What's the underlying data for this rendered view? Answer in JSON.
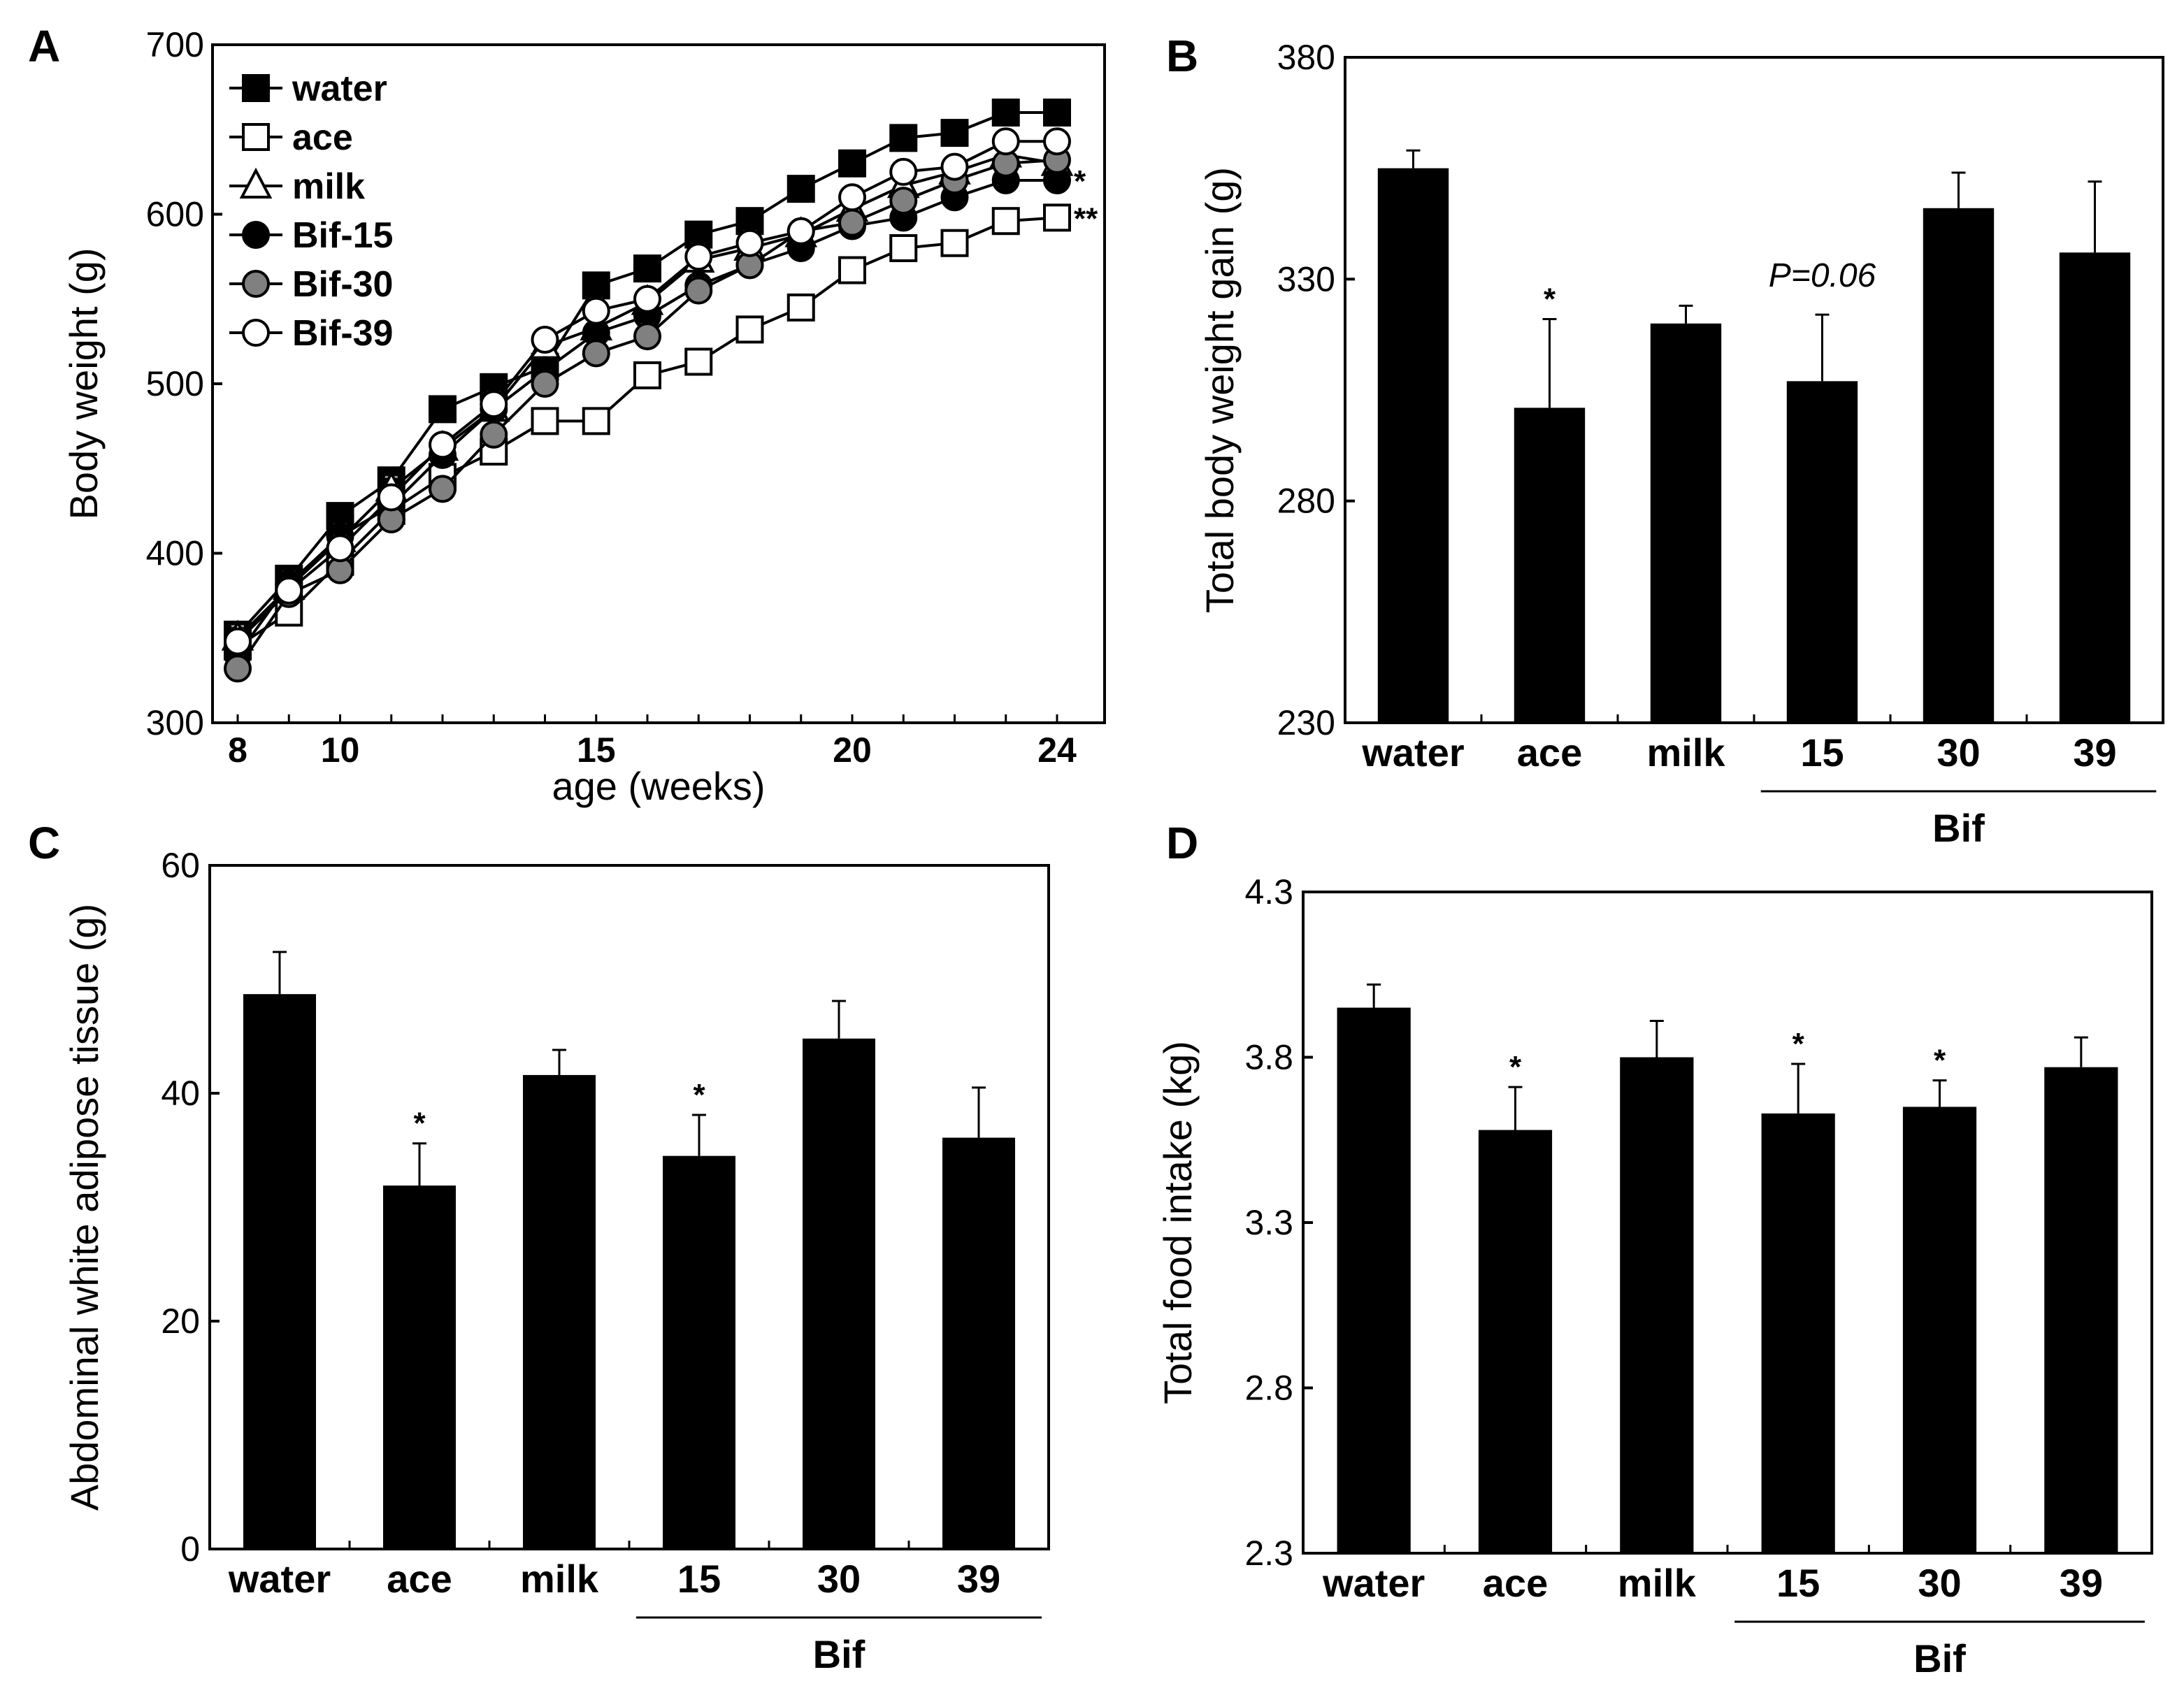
{
  "chart_data": [
    {
      "panel": "A",
      "type": "line",
      "xlabel": "age (weeks)",
      "ylabel": "Body weight (g)",
      "xlim": [
        8,
        24
      ],
      "ylim": [
        300,
        700
      ],
      "xticks": [
        8,
        10,
        15,
        20,
        24
      ],
      "yticks": [
        300,
        400,
        500,
        600,
        700
      ],
      "legend_position": "top-left",
      "x": [
        8,
        9,
        10,
        11,
        12,
        13,
        14,
        15,
        16,
        17,
        18,
        19,
        20,
        21,
        22,
        23,
        24
      ],
      "series": [
        {
          "name": "water",
          "marker": "square",
          "fill": "#000000",
          "values": [
            352,
            385,
            422,
            443,
            485,
            498,
            510,
            558,
            568,
            588,
            596,
            615,
            630,
            645,
            648,
            660,
            660
          ]
        },
        {
          "name": "ace",
          "marker": "square",
          "fill": "#ffffff",
          "values": [
            345,
            365,
            395,
            425,
            445,
            460,
            478,
            478,
            505,
            513,
            532,
            545,
            567,
            580,
            583,
            596,
            598
          ]
        },
        {
          "name": "milk",
          "marker": "triangle",
          "fill": "#ffffff",
          "values": [
            350,
            380,
            408,
            438,
            462,
            485,
            522,
            533,
            548,
            573,
            580,
            588,
            603,
            617,
            625,
            635,
            630
          ]
        },
        {
          "name": "Bif-15",
          "marker": "circle",
          "fill": "#000000",
          "values": [
            340,
            382,
            410,
            428,
            458,
            485,
            508,
            530,
            540,
            558,
            570,
            580,
            593,
            598,
            610,
            620,
            620
          ]
        },
        {
          "name": "Bif-30",
          "marker": "circle",
          "fill": "#808080",
          "values": [
            332,
            376,
            390,
            420,
            438,
            470,
            500,
            518,
            528,
            555,
            570,
            590,
            595,
            608,
            620,
            630,
            632
          ]
        },
        {
          "name": "Bif-39",
          "marker": "circle",
          "fill": "#ffffff",
          "values": [
            348,
            378,
            403,
            433,
            464,
            488,
            526,
            543,
            550,
            575,
            583,
            590,
            610,
            625,
            628,
            643,
            643
          ]
        }
      ],
      "annotations": [
        {
          "series": "Bif-15",
          "text": "*"
        },
        {
          "series": "ace",
          "text": "**"
        }
      ]
    },
    {
      "panel": "B",
      "type": "bar",
      "ylabel": "Total body weight gain (g)",
      "ylim": [
        230,
        380
      ],
      "yticks": [
        230,
        280,
        330,
        380
      ],
      "categories": [
        "water",
        "ace",
        "milk",
        "15",
        "30",
        "39"
      ],
      "group_label": "Bif",
      "group_members": [
        "15",
        "30",
        "39"
      ],
      "values": [
        355,
        301,
        320,
        307,
        346,
        336
      ],
      "errors": [
        4,
        20,
        4,
        15,
        8,
        16
      ],
      "annotations": [
        {
          "category": "ace",
          "text": "*"
        },
        {
          "category": "15",
          "text": "P=0.06",
          "italic": true
        }
      ]
    },
    {
      "panel": "C",
      "type": "bar",
      "ylabel": "Abdominal white adipose tissue (g)",
      "ylim": [
        0,
        60
      ],
      "yticks": [
        0,
        20,
        40,
        60
      ],
      "categories": [
        "water",
        "ace",
        "milk",
        "15",
        "30",
        "39"
      ],
      "group_label": "Bif",
      "group_members": [
        "15",
        "30",
        "39"
      ],
      "values": [
        48.7,
        31.9,
        41.6,
        34.5,
        44.8,
        36.1
      ],
      "errors": [
        3.7,
        3.7,
        2.2,
        3.6,
        3.3,
        4.4
      ],
      "annotations": [
        {
          "category": "ace",
          "text": "*"
        },
        {
          "category": "15",
          "text": "*"
        }
      ]
    },
    {
      "panel": "D",
      "type": "bar",
      "ylabel": "Total  food intake (kg)",
      "ylim": [
        2.3,
        4.3
      ],
      "yticks": [
        2.3,
        2.8,
        3.3,
        3.8,
        4.3
      ],
      "categories": [
        "water",
        "ace",
        "milk",
        "15",
        "30",
        "39"
      ],
      "group_label": "Bif",
      "group_members": [
        "15",
        "30",
        "39"
      ],
      "values": [
        3.95,
        3.58,
        3.8,
        3.63,
        3.65,
        3.77
      ],
      "errors": [
        0.07,
        0.13,
        0.11,
        0.15,
        0.08,
        0.09
      ],
      "annotations": [
        {
          "category": "ace",
          "text": "*"
        },
        {
          "category": "15",
          "text": "*"
        },
        {
          "category": "30",
          "text": "*"
        }
      ]
    }
  ]
}
